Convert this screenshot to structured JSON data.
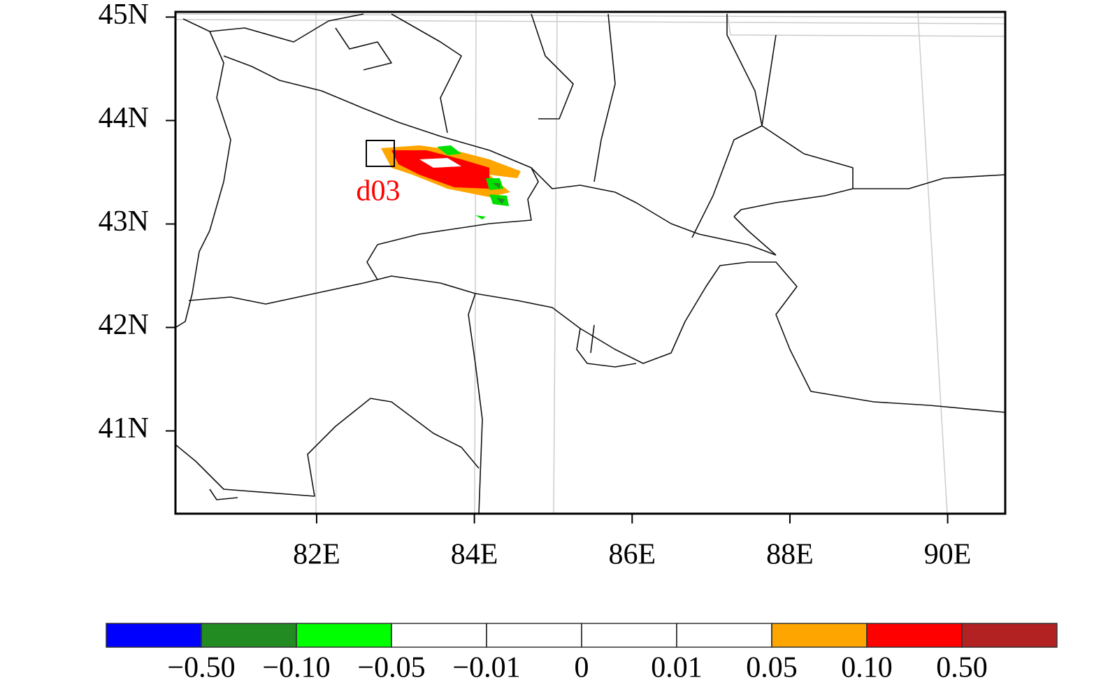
{
  "map": {
    "xlim": [
      80.21,
      90.73
    ],
    "ylim": [
      40.2,
      45.05
    ],
    "xticks": [
      {
        "value": 82,
        "label": "82E"
      },
      {
        "value": 84,
        "label": "84E"
      },
      {
        "value": 86,
        "label": "86E"
      },
      {
        "value": 88,
        "label": "88E"
      },
      {
        "value": 90,
        "label": "90E"
      }
    ],
    "yticks": [
      {
        "value": 41,
        "label": "41N"
      },
      {
        "value": 42,
        "label": "42N"
      },
      {
        "value": 43,
        "label": "43N"
      },
      {
        "value": 44,
        "label": "44N"
      },
      {
        "value": 45,
        "label": "45N"
      }
    ],
    "annotation": "d03",
    "annotation_color": "#ff0000"
  },
  "colorbar": {
    "levels": [
      {
        "value": -0.5,
        "label": "−0.50"
      },
      {
        "value": -0.1,
        "label": "−0.10"
      },
      {
        "value": -0.05,
        "label": "−0.05"
      },
      {
        "value": -0.01,
        "label": "−0.01"
      },
      0,
      0.01,
      0.05,
      {
        "value": 0.1,
        "label": "0.10"
      },
      {
        "value": 0.5,
        "label": "0.50"
      }
    ],
    "colors": [
      "#0000ff",
      "#228b22",
      "#00ff00",
      "#ffffff",
      "#ffffff",
      "#ffffff",
      "#ffffff",
      "#ffa500",
      "#ff0000",
      "#b22222"
    ]
  }
}
